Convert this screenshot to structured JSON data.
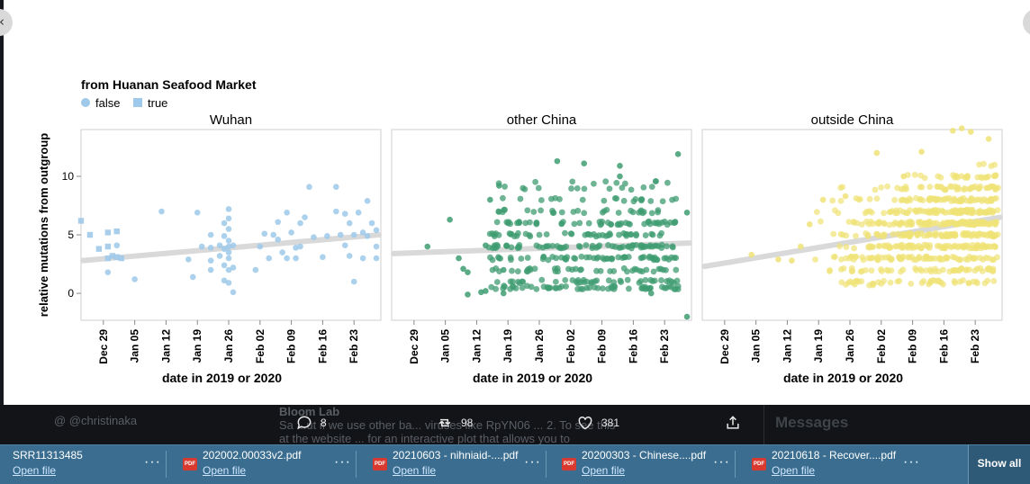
{
  "legend": {
    "title": "from Huanan Seafood Market",
    "items": [
      {
        "label": "false",
        "shape": "circle",
        "color": "#9ec9ea"
      },
      {
        "label": "true",
        "shape": "square",
        "color": "#9ec9ea"
      }
    ]
  },
  "y_axis_label": "relative mutations from outgroup",
  "chart_data": {
    "type": "scatter",
    "xlabel": "date in 2019 or 2020",
    "ylabel": "relative mutations from outgroup",
    "x_ticks": [
      "Dec 29",
      "Jan 05",
      "Jan 12",
      "Jan 19",
      "Jan 26",
      "Feb 02",
      "Feb 09",
      "Feb 16",
      "Feb 23"
    ],
    "x_range": [
      "2019-12-24",
      "2020-02-29"
    ],
    "y_ticks": [
      0,
      5,
      10
    ],
    "ylim": [
      -2.3,
      14
    ],
    "grid": false,
    "legend_position": "top-left",
    "facets": [
      {
        "title": "Wuhan",
        "color": "#9ec9ea",
        "trend": {
          "y_start": 2.8,
          "y_end": 5.0
        },
        "points": [
          {
            "x": "2019-12-24",
            "y": 6.2,
            "market": true
          },
          {
            "x": "2019-12-26",
            "y": 5.0,
            "market": true
          },
          {
            "x": "2019-12-28",
            "y": 3.8,
            "market": true
          },
          {
            "x": "2019-12-30",
            "y": 5.2,
            "market": true
          },
          {
            "x": "2019-12-30",
            "y": 4.0,
            "market": true
          },
          {
            "x": "2019-12-30",
            "y": 3.0,
            "market": true
          },
          {
            "x": "2019-12-31",
            "y": 3.2,
            "market": true
          },
          {
            "x": "2020-01-01",
            "y": 5.3,
            "market": true
          },
          {
            "x": "2020-01-01",
            "y": 3.1,
            "market": true
          },
          {
            "x": "2020-01-02",
            "y": 3.0,
            "market": true
          },
          {
            "x": "2019-12-30",
            "y": 1.8,
            "market": false
          },
          {
            "x": "2020-01-01",
            "y": 4.1,
            "market": false
          },
          {
            "x": "2020-01-05",
            "y": 1.2,
            "market": false
          },
          {
            "x": "2020-01-11",
            "y": 7.0,
            "market": false
          },
          {
            "x": "2020-01-17",
            "y": 2.9,
            "market": false
          },
          {
            "x": "2020-01-18",
            "y": 1.4,
            "market": false
          },
          {
            "x": "2020-01-19",
            "y": 6.9,
            "market": false
          },
          {
            "x": "2020-01-20",
            "y": 4.0,
            "market": false
          },
          {
            "x": "2020-01-22",
            "y": 5.0,
            "market": false
          },
          {
            "x": "2020-01-22",
            "y": 3.9,
            "market": false
          },
          {
            "x": "2020-01-22",
            "y": 2.8,
            "market": false
          },
          {
            "x": "2020-01-22",
            "y": 2.0,
            "market": false
          },
          {
            "x": "2020-01-24",
            "y": 4.1,
            "market": false
          },
          {
            "x": "2020-01-24",
            "y": 3.2,
            "market": false
          },
          {
            "x": "2020-01-25",
            "y": 6.0,
            "market": false
          },
          {
            "x": "2020-01-25",
            "y": 4.9,
            "market": false
          },
          {
            "x": "2020-01-25",
            "y": 3.8,
            "market": false
          },
          {
            "x": "2020-01-25",
            "y": 2.4,
            "market": false
          },
          {
            "x": "2020-01-25",
            "y": 1.1,
            "market": false
          },
          {
            "x": "2020-01-26",
            "y": 7.2,
            "market": false
          },
          {
            "x": "2020-01-26",
            "y": 6.4,
            "market": false
          },
          {
            "x": "2020-01-26",
            "y": 5.5,
            "market": false
          },
          {
            "x": "2020-01-26",
            "y": 4.5,
            "market": false
          },
          {
            "x": "2020-01-26",
            "y": 4.0,
            "market": false
          },
          {
            "x": "2020-01-26",
            "y": 3.5,
            "market": false
          },
          {
            "x": "2020-01-26",
            "y": 3.0,
            "market": false
          },
          {
            "x": "2020-01-26",
            "y": 2.0,
            "market": false
          },
          {
            "x": "2020-01-26",
            "y": 0.9,
            "market": false
          },
          {
            "x": "2020-01-27",
            "y": 4.1,
            "market": false
          },
          {
            "x": "2020-01-27",
            "y": 2.2,
            "market": false
          },
          {
            "x": "2020-01-27",
            "y": 0.1,
            "market": false
          },
          {
            "x": "2020-02-01",
            "y": 2.0,
            "market": false
          },
          {
            "x": "2020-02-02",
            "y": 4.0,
            "market": false
          },
          {
            "x": "2020-02-03",
            "y": 5.1,
            "market": false
          },
          {
            "x": "2020-02-04",
            "y": 3.0,
            "market": false
          },
          {
            "x": "2020-02-05",
            "y": 5.0,
            "market": false
          },
          {
            "x": "2020-02-06",
            "y": 6.1,
            "market": false
          },
          {
            "x": "2020-02-06",
            "y": 4.6,
            "market": false
          },
          {
            "x": "2020-02-07",
            "y": 3.5,
            "market": false
          },
          {
            "x": "2020-02-08",
            "y": 3.0,
            "market": false
          },
          {
            "x": "2020-02-08",
            "y": 6.9,
            "market": false
          },
          {
            "x": "2020-02-09",
            "y": 5.2,
            "market": false
          },
          {
            "x": "2020-02-10",
            "y": 3.9,
            "market": false
          },
          {
            "x": "2020-02-10",
            "y": 3.0,
            "market": false
          },
          {
            "x": "2020-02-11",
            "y": 6.0,
            "market": false
          },
          {
            "x": "2020-02-11",
            "y": 4.0,
            "market": false
          },
          {
            "x": "2020-02-12",
            "y": 6.5,
            "market": false
          },
          {
            "x": "2020-02-13",
            "y": 9.1,
            "market": false
          },
          {
            "x": "2020-02-14",
            "y": 4.8,
            "market": false
          },
          {
            "x": "2020-02-16",
            "y": 3.1,
            "market": false
          },
          {
            "x": "2020-02-17",
            "y": 4.9,
            "market": false
          },
          {
            "x": "2020-02-19",
            "y": 9.1,
            "market": false
          },
          {
            "x": "2020-02-19",
            "y": 7.0,
            "market": false
          },
          {
            "x": "2020-02-20",
            "y": 5.0,
            "market": false
          },
          {
            "x": "2020-02-21",
            "y": 6.8,
            "market": false
          },
          {
            "x": "2020-02-21",
            "y": 4.1,
            "market": false
          },
          {
            "x": "2020-02-22",
            "y": 6.0,
            "market": false
          },
          {
            "x": "2020-02-22",
            "y": 3.2,
            "market": false
          },
          {
            "x": "2020-02-23",
            "y": 5.0,
            "market": false
          },
          {
            "x": "2020-02-23",
            "y": 1.0,
            "market": false
          },
          {
            "x": "2020-02-24",
            "y": 6.9,
            "market": false
          },
          {
            "x": "2020-02-25",
            "y": 5.2,
            "market": false
          },
          {
            "x": "2020-02-25",
            "y": 3.0,
            "market": false
          },
          {
            "x": "2020-02-26",
            "y": 7.9,
            "market": false
          },
          {
            "x": "2020-02-26",
            "y": 4.9,
            "market": false
          },
          {
            "x": "2020-02-27",
            "y": 6.0,
            "market": false
          },
          {
            "x": "2020-02-28",
            "y": 4.0,
            "market": false
          },
          {
            "x": "2020-02-28",
            "y": 3.0,
            "market": false
          },
          {
            "x": "2020-02-28",
            "y": 5.4,
            "market": false
          }
        ]
      },
      {
        "title": "other China",
        "color": "#3f9c72",
        "trend": {
          "y_start": 3.4,
          "y_end": 4.3
        },
        "points": [
          {
            "x": "2020-01-01",
            "y": 4.0,
            "market": false
          },
          {
            "x": "2020-01-06",
            "y": 6.3,
            "market": false
          },
          {
            "x": "2020-01-08",
            "y": 3.0,
            "market": false
          },
          {
            "x": "2020-01-09",
            "y": 2.1,
            "market": false
          },
          {
            "x": "2020-01-10",
            "y": 1.8,
            "market": false
          },
          {
            "x": "2020-01-10",
            "y": -0.1,
            "market": false
          },
          {
            "x": "2020-01-13",
            "y": 0.1,
            "market": false
          },
          {
            "x": "2020-01-14",
            "y": 4.1,
            "market": false
          },
          {
            "x": "2020-01-14",
            "y": 0.2,
            "market": false
          },
          {
            "x": "2020-01-15",
            "y": 8.0,
            "market": false
          },
          {
            "x": "2020-01-16",
            "y": 4.1,
            "market": false
          },
          {
            "x": "2020-01-17",
            "y": 3.0,
            "market": false
          },
          {
            "x": "2020-01-17",
            "y": 9.2,
            "market": false
          },
          {
            "x": "2020-01-18",
            "y": 2.0,
            "market": false
          },
          {
            "x": "2020-01-18",
            "y": 0.0,
            "market": false
          },
          {
            "x": "2020-01-19",
            "y": 6.0,
            "market": false
          },
          {
            "x": "2020-02-26",
            "y": 11.9,
            "market": false
          },
          {
            "x": "2020-02-28",
            "y": -2.0,
            "market": false
          },
          {
            "x": "2020-02-28",
            "y": 6.9,
            "market": false
          },
          {
            "x": "2020-02-20",
            "y": 0.0,
            "market": false
          },
          {
            "x": "2020-02-13",
            "y": 10.0,
            "market": false
          },
          {
            "x": "2020-02-13",
            "y": 10.9,
            "market": false
          },
          {
            "x": "2020-02-05",
            "y": 11.1,
            "market": false
          },
          {
            "x": "2020-01-30",
            "y": 11.3,
            "market": false
          }
        ]
      },
      {
        "title": "outside China",
        "color": "#efe276",
        "trend": {
          "y_start": 2.3,
          "y_end": 6.5
        },
        "points": [
          {
            "x": "2020-01-04",
            "y": 3.3,
            "market": false
          },
          {
            "x": "2020-01-10",
            "y": 2.9,
            "market": false
          },
          {
            "x": "2020-01-13",
            "y": 2.8,
            "market": false
          },
          {
            "x": "2020-01-15",
            "y": 4.0,
            "market": false
          },
          {
            "x": "2020-01-17",
            "y": 5.9,
            "market": false
          },
          {
            "x": "2020-01-20",
            "y": 8.0,
            "market": false
          },
          {
            "x": "2020-01-25",
            "y": 8.3,
            "market": false
          },
          {
            "x": "2020-02-01",
            "y": 12.0,
            "market": false
          },
          {
            "x": "2020-02-07",
            "y": 10.0,
            "market": false
          },
          {
            "x": "2020-02-11",
            "y": 12.1,
            "market": false
          },
          {
            "x": "2020-02-18",
            "y": 13.9,
            "market": false
          },
          {
            "x": "2020-02-20",
            "y": 14.1,
            "market": false
          },
          {
            "x": "2020-02-22",
            "y": 13.8,
            "market": false
          },
          {
            "x": "2020-02-26",
            "y": 13.2,
            "market": false
          }
        ]
      }
    ]
  },
  "nav": {
    "prev_label": "‹"
  },
  "tweet_bar": {
    "ghost_left": "@ @christinaka",
    "ghost_name": "Bloom Lab",
    "ghost_text": "Sa  ...ut if we use other ba... viruses like RpYN06 ... 2. To see this",
    "ghost_text2": "at the website ... for an interactive plot that allows you to",
    "reply_count": "8",
    "retweet_count": "98",
    "like_count": "381",
    "messages_title": "Messages"
  },
  "downloads": [
    {
      "name": "SRR11313485",
      "action": "Open file",
      "pdf": false
    },
    {
      "name": "202002.00033v2.pdf",
      "action": "Open file",
      "pdf": true
    },
    {
      "name": "20210603 - nihniaid-....pdf",
      "action": "Open file",
      "pdf": true
    },
    {
      "name": "20200303 - Chinese....pdf",
      "action": "Open file",
      "pdf": true
    },
    {
      "name": "20210618 - Recover....pdf",
      "action": "Open file",
      "pdf": true
    }
  ],
  "download_more_label": "···",
  "pdf_badge": "PDF",
  "show_all_label": "Show all"
}
